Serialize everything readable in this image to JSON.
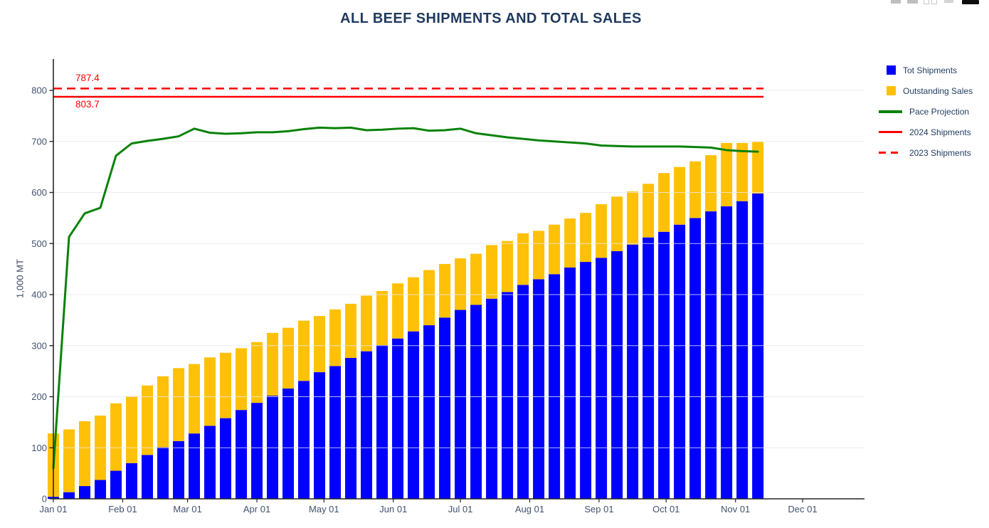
{
  "header": {
    "title": "ALL BEEF SHIPMENTS AND TOTAL SALES"
  },
  "modebar": {
    "icons": [
      "toolbar-icon-1",
      "toolbar-icon-2",
      "toolbar-icon-3",
      "toolbar-icon-4",
      "toolbar-icon-5",
      "plotly-logo"
    ]
  },
  "y_axis": {
    "title": "1,000 MT",
    "ticks": [
      0,
      100,
      200,
      300,
      400,
      500,
      600,
      700,
      800
    ]
  },
  "x_axis": {
    "ticks": [
      {
        "label": "Jan 01",
        "day": 0
      },
      {
        "label": "Feb 01",
        "day": 31
      },
      {
        "label": "Mar 01",
        "day": 60
      },
      {
        "label": "Apr 01",
        "day": 91
      },
      {
        "label": "May 01",
        "day": 121
      },
      {
        "label": "Jun 01",
        "day": 152
      },
      {
        "label": "Jul 01",
        "day": 182
      },
      {
        "label": "Aug 01",
        "day": 213
      },
      {
        "label": "Sep 01",
        "day": 244
      },
      {
        "label": "Oct 01",
        "day": 274
      },
      {
        "label": "Nov 01",
        "day": 305
      },
      {
        "label": "Dec 01",
        "day": 335
      }
    ]
  },
  "legend": {
    "items": [
      {
        "label": "Tot Shipments",
        "swatch": {
          "type": "square",
          "color": "#0000FF"
        }
      },
      {
        "label": "Outstanding Sales",
        "swatch": {
          "type": "square",
          "color": "#FFC107"
        }
      },
      {
        "label": "Pace Projection",
        "swatch": {
          "type": "line",
          "color": "#088208",
          "thickness": 4
        }
      },
      {
        "label": "2024 Shipments",
        "swatch": {
          "type": "line",
          "color": "#FF0000",
          "thickness": 3
        }
      },
      {
        "label": "2023 Shipments",
        "swatch": {
          "type": "dash",
          "color": "#FF0000",
          "thickness": 3
        }
      }
    ]
  },
  "colors": {
    "tot_shipments": "#0000FF",
    "outstanding_sales": "#FFC107",
    "pace": "#088208",
    "reference": "#FF0000",
    "title": "#1F3A5E",
    "tick_label": "#42526E",
    "axis_line": "#262626",
    "gridline": "#E3EAF1"
  },
  "chart_data": {
    "type": "bar",
    "subtype": "stacked-bars-with-lines",
    "title": "ALL BEEF SHIPMENTS AND TOTAL SALES",
    "xlabel": "",
    "ylabel": "1,000 MT",
    "ylim": [
      0,
      861
    ],
    "xlim_days": [
      0,
      362
    ],
    "grid": "horizontal",
    "legend_position": "right",
    "categories": [
      "Jan 01",
      "Jan 08",
      "Jan 15",
      "Jan 22",
      "Jan 29",
      "Feb 05",
      "Feb 12",
      "Feb 19",
      "Feb 26",
      "Mar 04",
      "Mar 11",
      "Mar 18",
      "Mar 25",
      "Apr 01",
      "Apr 08",
      "Apr 15",
      "Apr 22",
      "Apr 29",
      "May 06",
      "May 13",
      "May 20",
      "May 27",
      "Jun 03",
      "Jun 10",
      "Jun 17",
      "Jun 24",
      "Jul 01",
      "Jul 08",
      "Jul 15",
      "Jul 22",
      "Jul 29",
      "Aug 05",
      "Aug 12",
      "Aug 19",
      "Aug 26",
      "Sep 02",
      "Sep 09",
      "Sep 16",
      "Sep 23",
      "Sep 30",
      "Oct 07",
      "Oct 14",
      "Oct 21",
      "Oct 28",
      "Nov 04",
      "Nov 11"
    ],
    "series": [
      {
        "name": "Tot Shipments",
        "type": "bar",
        "stack": true,
        "color": "#0000FF",
        "values": [
          4,
          13,
          25,
          37,
          55,
          70,
          86,
          101,
          113,
          128,
          143,
          158,
          174,
          188,
          202,
          216,
          231,
          248,
          260,
          276,
          289,
          301,
          314,
          328,
          340,
          355,
          370,
          380,
          392,
          405,
          419,
          430,
          440,
          453,
          464,
          472,
          485,
          498,
          512,
          523,
          537,
          550,
          563,
          573,
          583,
          598
        ]
      },
      {
        "name": "Outstanding Sales",
        "type": "bar",
        "stack": true,
        "color": "#FFC107",
        "values": [
          124,
          123,
          127,
          126,
          132,
          131,
          136,
          139,
          143,
          136,
          134,
          128,
          121,
          119,
          123,
          119,
          118,
          110,
          111,
          106,
          109,
          106,
          108,
          106,
          108,
          105,
          101,
          100,
          105,
          100,
          101,
          95,
          97,
          96,
          96,
          105,
          107,
          104,
          105,
          115,
          113,
          111,
          110,
          124,
          114,
          101
        ]
      },
      {
        "name": "Pace Projection",
        "type": "line",
        "color": "#088208",
        "width": 3,
        "values": [
          60,
          513,
          559,
          570,
          672,
          696,
          701,
          705,
          710,
          725,
          717,
          715,
          716,
          718,
          718,
          720,
          724,
          727,
          726,
          727,
          722,
          723,
          725,
          726,
          721,
          722,
          725,
          716,
          712,
          708,
          705,
          702,
          700,
          698,
          696,
          692,
          691,
          690,
          690,
          690,
          690,
          689,
          688,
          683,
          681,
          680
        ]
      }
    ],
    "ref_lines": [
      {
        "name": "2024 Shipments",
        "value": 787.4,
        "style": "solid",
        "color": "#FF0000",
        "annotation": "787.4"
      },
      {
        "name": "2023 Shipments",
        "value": 803.7,
        "style": "dashed",
        "color": "#FF0000",
        "annotation": "803.7"
      }
    ]
  }
}
